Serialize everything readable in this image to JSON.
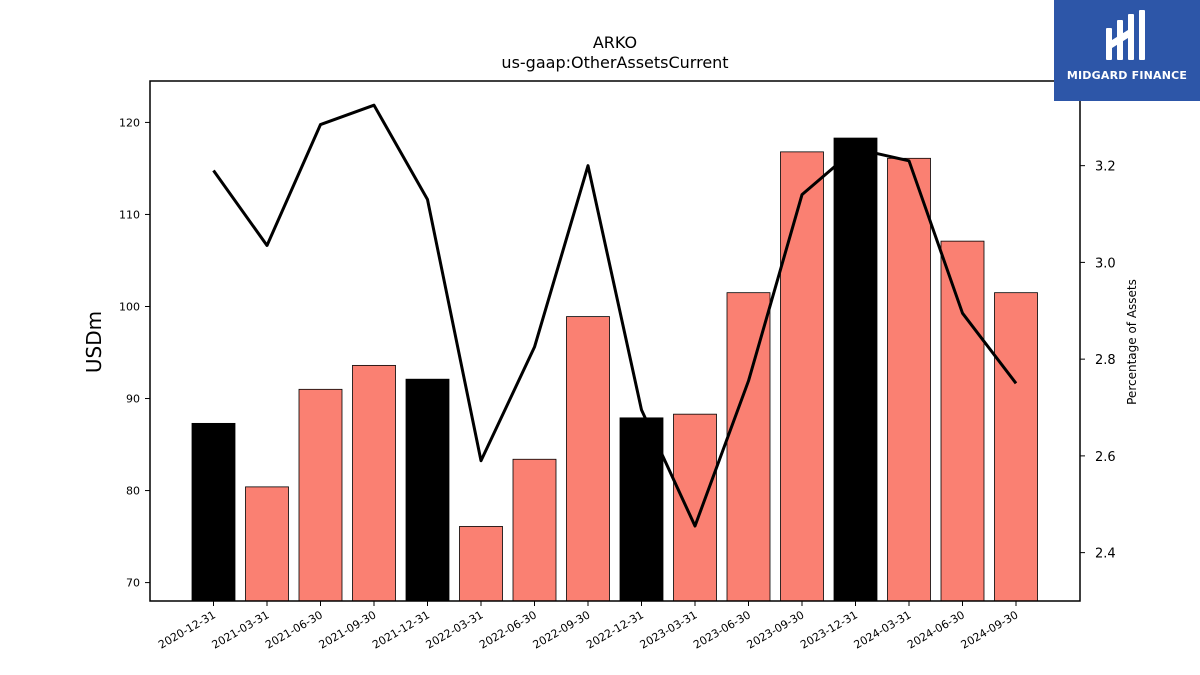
{
  "logo": {
    "text": "MIDGARD FINANCE",
    "icon": "midgard-m-logo-icon",
    "color": "#2d56a8"
  },
  "chart_data": {
    "type": "bar",
    "title": "ARKO",
    "subtitle": "us-gaap:OtherAssetsCurrent",
    "ylabel": "USDm",
    "y2label": "Percentage of Assets",
    "ylim": [
      68,
      124.5
    ],
    "y2lim": [
      2.3,
      3.375
    ],
    "yticks": [
      70,
      80,
      90,
      100,
      110,
      120
    ],
    "y2ticks": [
      2.4,
      2.6,
      2.8,
      3.0,
      3.2
    ],
    "grid": false,
    "categories": [
      "2020-12-31",
      "2021-03-31",
      "2021-06-30",
      "2021-09-30",
      "2021-12-31",
      "2022-03-31",
      "2022-06-30",
      "2022-09-30",
      "2022-12-31",
      "2023-03-31",
      "2023-06-30",
      "2023-09-30",
      "2023-12-31",
      "2024-03-31",
      "2024-06-30",
      "2024-09-30"
    ],
    "series": [
      {
        "type": "bar",
        "values": [
          87.3,
          80.4,
          91.0,
          93.6,
          92.1,
          76.1,
          83.4,
          98.9,
          87.9,
          88.3,
          101.5,
          116.8,
          118.3,
          116.1,
          107.1,
          101.5
        ],
        "colors": [
          "#000000",
          "#fa8072",
          "#fa8072",
          "#fa8072",
          "#000000",
          "#fa8072",
          "#fa8072",
          "#fa8072",
          "#000000",
          "#fa8072",
          "#fa8072",
          "#fa8072",
          "#000000",
          "#fa8072",
          "#fa8072",
          "#fa8072"
        ]
      },
      {
        "type": "line",
        "axis": "right",
        "color": "#000000",
        "values": [
          3.19,
          3.035,
          3.285,
          3.325,
          3.13,
          2.59,
          2.825,
          3.2,
          2.695,
          2.455,
          2.755,
          3.14,
          3.235,
          3.21,
          2.895,
          2.75
        ]
      }
    ]
  }
}
